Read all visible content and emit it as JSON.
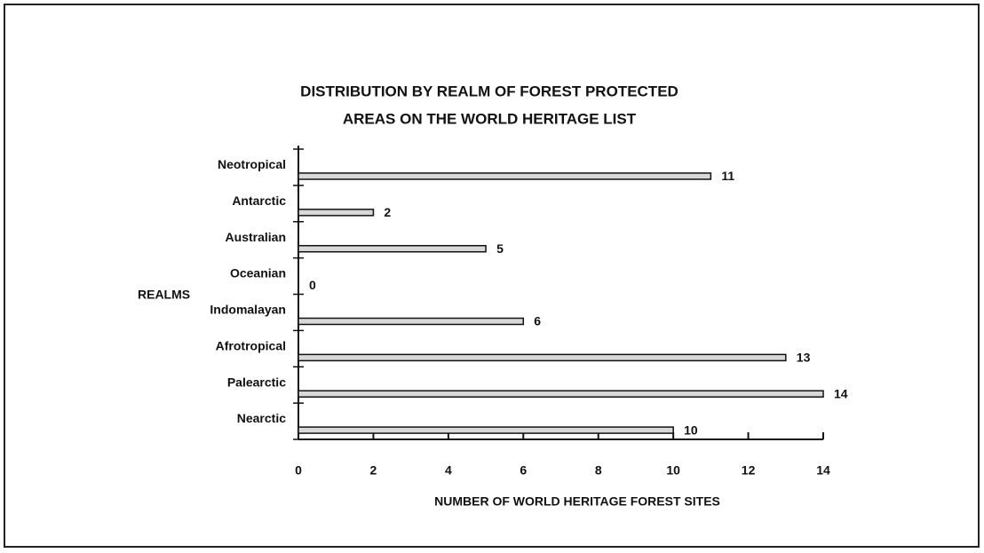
{
  "chart_data": {
    "type": "bar",
    "orientation": "horizontal",
    "title": [
      "DISTRIBUTION BY REALM OF FOREST PROTECTED",
      "AREAS ON THE WORLD HERITAGE LIST"
    ],
    "xlabel": "NUMBER OF WORLD HERITAGE FOREST SITES",
    "ylabel": "REALMS",
    "categories": [
      "Neotropical",
      "Antarctic",
      "Australian",
      "Oceanian",
      "Indomalayan",
      "Afrotropical",
      "Palearctic",
      "Nearctic"
    ],
    "values": [
      11,
      2,
      5,
      0,
      6,
      13,
      14,
      10
    ],
    "color": "#d8d8d8",
    "xlim": [
      0,
      14
    ],
    "xticks": [
      0,
      2,
      4,
      6,
      8,
      10,
      12,
      14
    ]
  }
}
